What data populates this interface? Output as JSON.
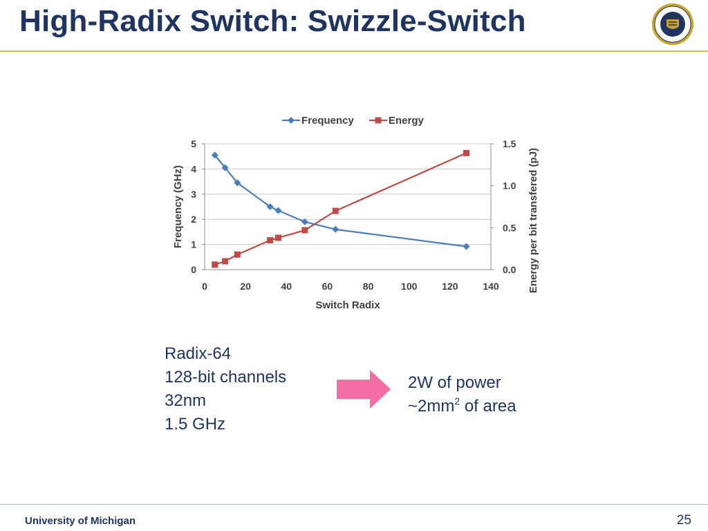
{
  "slide": {
    "title": "High-Radix Switch: Swizzle-Switch",
    "footer_org": "University of Michigan",
    "page_number": "25",
    "seal_text": "THE UNIVERSITY OF MICHIGAN 1817"
  },
  "specs": [
    "Radix-64",
    "128-bit channels",
    "32nm",
    "1.5 GHz"
  ],
  "results": {
    "line1": "2W of power",
    "line2_prefix": "~2mm",
    "line2_sup": "2",
    "line2_suffix": " of area"
  },
  "colors": {
    "title": "#1f3461",
    "rule": "#e8b24a",
    "frequency": "#4a7ebb",
    "energy": "#be4b48",
    "arrow": "#f26ea3"
  },
  "icons": {
    "arrow": "right-arrow-icon",
    "seal": "university-seal-icon"
  },
  "chart_data": {
    "type": "line",
    "title": "",
    "xlabel": "Switch Radix",
    "ylabel": "Frequency (GHz)",
    "y2label": "Energy per bit transfered (pJ)",
    "xlim": [
      0,
      140
    ],
    "ylim": [
      0,
      5
    ],
    "y2lim": [
      0,
      1.5
    ],
    "x_ticks": [
      0,
      20,
      40,
      60,
      80,
      100,
      120,
      140
    ],
    "y_ticks": [
      0,
      1,
      2,
      3,
      4,
      5
    ],
    "y2_ticks": [
      "0.0",
      "0.5",
      "1.0",
      "1.5"
    ],
    "legend_position": "top",
    "grid": true,
    "series": [
      {
        "name": "Frequency",
        "axis": "left",
        "marker": "diamond",
        "color": "#4a7ebb",
        "x": [
          5,
          10,
          16,
          32,
          36,
          49,
          64,
          128
        ],
        "y": [
          4.55,
          4.05,
          3.45,
          2.5,
          2.35,
          1.9,
          1.6,
          0.92
        ]
      },
      {
        "name": "Energy",
        "axis": "right",
        "marker": "square",
        "color": "#be4b48",
        "x": [
          5,
          10,
          16,
          32,
          36,
          49,
          64,
          128
        ],
        "y": [
          0.06,
          0.1,
          0.18,
          0.35,
          0.38,
          0.47,
          0.7,
          1.39
        ]
      }
    ]
  }
}
